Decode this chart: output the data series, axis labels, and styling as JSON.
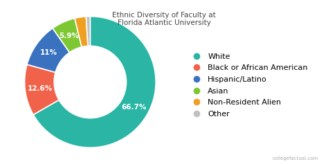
{
  "title": "Ethnic Diversity of Faculty at\nFlorida Atlantic University",
  "labels": [
    "White",
    "Black or African American",
    "Hispanic/Latino",
    "Asian",
    "Non-Resident Alien",
    "Other"
  ],
  "values": [
    66.7,
    12.6,
    11.0,
    5.9,
    2.8,
    1.0
  ],
  "pct_labels": [
    "66.7%",
    "12.6%",
    "11%",
    "5.9%",
    "",
    ""
  ],
  "colors": [
    "#2ab5a5",
    "#f0634a",
    "#3a72c0",
    "#7dc832",
    "#f0a020",
    "#c0c0c0"
  ],
  "background_color": "#ffffff",
  "title_fontsize": 7.5,
  "legend_fontsize": 8,
  "wedge_label_fontsize": 7.5,
  "wedge_label_color": "white",
  "donut_width": 0.45,
  "startangle": 90
}
